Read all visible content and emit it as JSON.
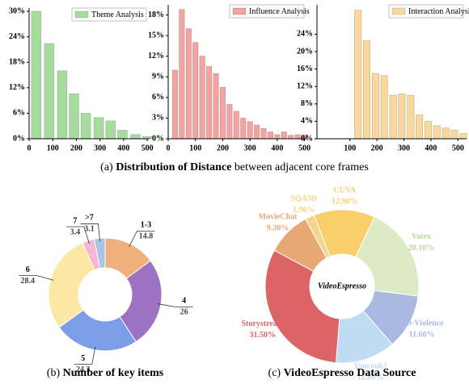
{
  "chart_data": [
    {
      "type": "bar",
      "x": [
        30,
        85,
        140,
        190,
        240,
        295,
        345,
        395,
        450,
        500
      ],
      "series": [
        {
          "name": "Theme Analysis",
          "color": "#a6dc9e",
          "values": [
            30,
            22.4,
            16,
            10.6,
            6,
            5,
            4.2,
            2,
            1,
            0.5
          ]
        }
      ],
      "xlim": [
        0,
        510
      ],
      "xticks": [
        0,
        100,
        200,
        300,
        400,
        500
      ],
      "ylim": [
        0,
        30
      ],
      "yticks": [
        {
          "value": 0,
          "label": "0%"
        },
        {
          "value": 6,
          "label": "6%"
        },
        {
          "value": 12,
          "label": "12%"
        },
        {
          "value": 18,
          "label": "18%"
        },
        {
          "value": 24,
          "label": "24%"
        },
        {
          "value": 30,
          "label": "30%"
        }
      ]
    },
    {
      "type": "bar",
      "x": [
        25,
        50,
        75,
        100,
        125,
        150,
        175,
        200,
        225,
        250,
        275,
        300,
        325,
        350,
        375,
        400,
        425,
        450,
        475,
        500
      ],
      "series": [
        {
          "name": "Influence Analysis",
          "color": "#f4a4a0",
          "values": [
            10,
            18.8,
            16,
            14,
            12,
            10.5,
            9.5,
            7.5,
            5,
            4,
            3,
            2.5,
            2,
            1.5,
            1,
            0.6,
            1,
            0.5,
            0.6,
            0.6
          ]
        }
      ],
      "xlim": [
        0,
        510
      ],
      "xticks": [
        0,
        100,
        200,
        300,
        400,
        500
      ],
      "ylim": [
        0,
        19
      ],
      "yticks": [
        {
          "value": 0,
          "label": "0%"
        },
        {
          "value": 3,
          "label": "3%"
        },
        {
          "value": 6,
          "label": "6%"
        },
        {
          "value": 9,
          "label": "9%"
        },
        {
          "value": 12,
          "label": "12%"
        },
        {
          "value": 15,
          "label": "15%"
        },
        {
          "value": 18,
          "label": "18%"
        }
      ]
    },
    {
      "type": "bar",
      "x": [
        130,
        162,
        195,
        227,
        260,
        292,
        325,
        357,
        390,
        422,
        455,
        487,
        520
      ],
      "series": [
        {
          "name": "Interaction Analysis",
          "color": "#fad89c",
          "values": [
            29.5,
            22.5,
            15,
            14.5,
            10,
            10.3,
            10,
            5.5,
            4,
            3,
            2.5,
            2,
            1.2
          ]
        }
      ],
      "xlim": [
        -22,
        532
      ],
      "xticks": [
        100,
        200,
        300,
        400,
        500
      ],
      "ylim": [
        0,
        30
      ],
      "yticks": [
        {
          "value": 0,
          "label": "0%"
        },
        {
          "value": 4,
          "label": "4%"
        },
        {
          "value": 8,
          "label": "8%"
        },
        {
          "value": 12,
          "label": "12%"
        },
        {
          "value": 16,
          "label": "16%"
        },
        {
          "value": 20,
          "label": "20%"
        },
        {
          "value": 24,
          "label": "24%"
        }
      ]
    },
    {
      "type": "donut",
      "categories": [
        "1-3",
        "4",
        "5",
        "6",
        "7",
        ">7"
      ],
      "values": [
        14.8,
        26,
        24.3,
        28.4,
        3.4,
        3.1
      ],
      "colors": [
        "#f0b07c",
        "#9c72c2",
        "#7c9ee8",
        "#fde7a4",
        "#f6b6d4",
        "#aac4e6"
      ]
    },
    {
      "type": "donut",
      "center_label": "VideoEspresso",
      "categories": [
        "CUVA",
        "Vatex",
        "XD-Violence",
        "Youcook2",
        "Storystream",
        "MovieChat",
        "SQA3D"
      ],
      "values": [
        12.9,
        20.1,
        11.6,
        12.6,
        31.5,
        9.3,
        1.9
      ],
      "value_labels": [
        "12.90%",
        "20.10%",
        "11.60%",
        "12.60%",
        "31.50%",
        "9.30%",
        "1.90%"
      ],
      "colors": [
        "#f8cf6a",
        "#dcebc4",
        "#a9b9e0",
        "#bfdcf4",
        "#dc6464",
        "#e8a874",
        "#f5d58e"
      ]
    }
  ],
  "captions": [
    {
      "tag": "(a)",
      "bold": "Distribution of Distance",
      "rest": "between adjacent core frames"
    },
    {
      "tag": "(b)",
      "bold": "Number of key items"
    },
    {
      "tag": "(c)",
      "bold": "VideoEspresso Data Source"
    }
  ]
}
